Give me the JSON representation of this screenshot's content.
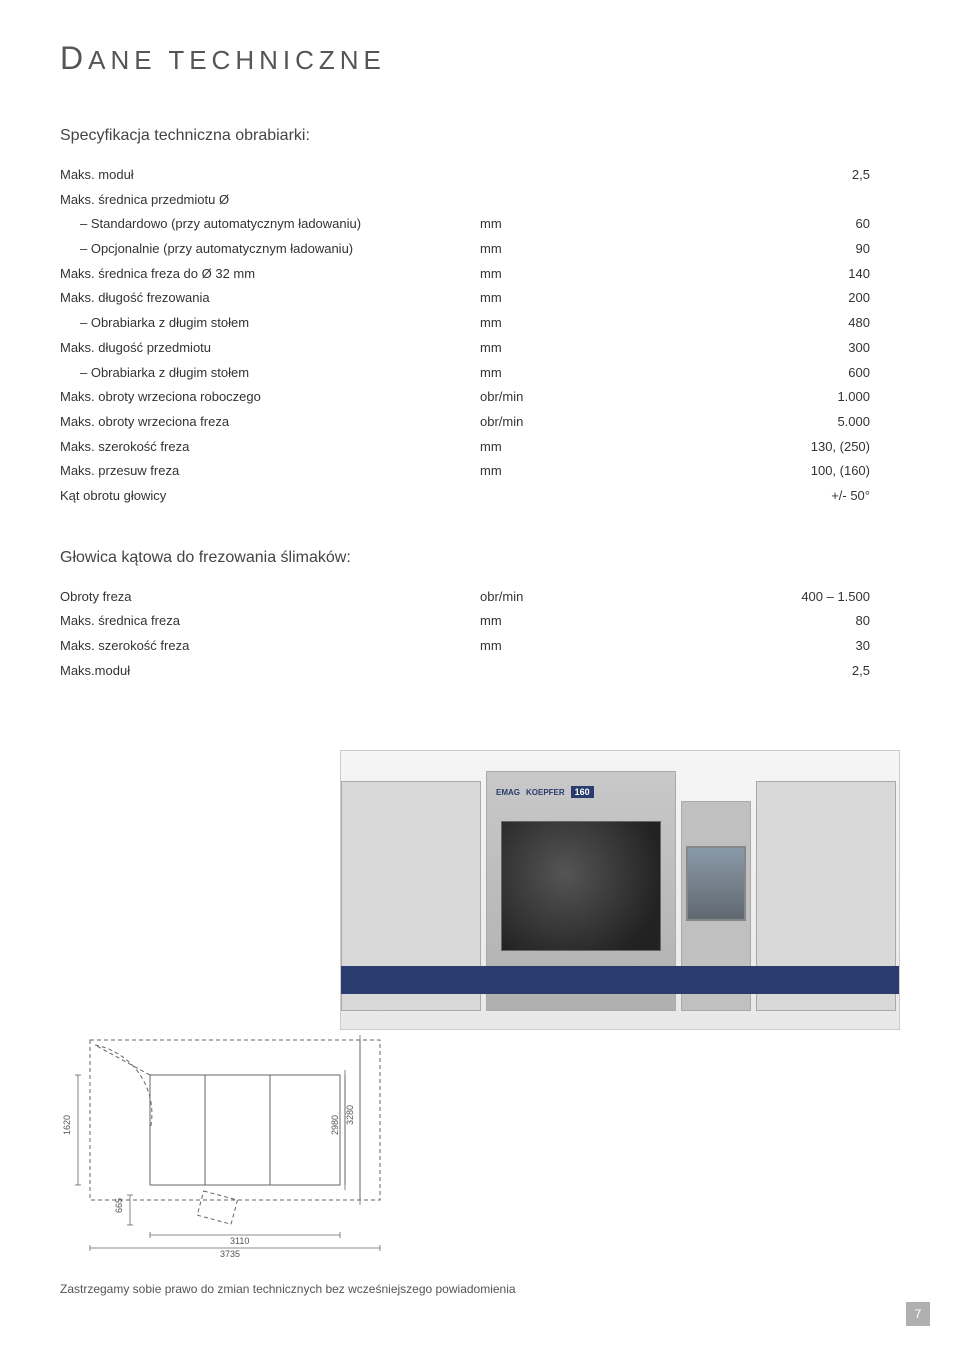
{
  "page": {
    "title_cap": "D",
    "title_rest": "ANE TECHNICZNE",
    "page_number": "7",
    "footer_note": "Zastrzegamy sobie prawo do zmian technicznych bez wcześniejszego powiadomienia"
  },
  "spec1": {
    "heading": "Specyfikacja techniczna obrabiarki:",
    "rows": [
      {
        "label": "Maks. moduł",
        "indent": false,
        "unit": "",
        "value": "2,5"
      },
      {
        "label": "Maks. średnica przedmiotu Ø",
        "indent": false,
        "unit": "",
        "value": ""
      },
      {
        "label": "– Standardowo (przy automatycznym ładowaniu)",
        "indent": true,
        "unit": "mm",
        "value": "60"
      },
      {
        "label": "– Opcjonalnie (przy automatycznym ładowaniu)",
        "indent": true,
        "unit": "mm",
        "value": "90"
      },
      {
        "label": "Maks. średnica freza   do Ø 32 mm",
        "indent": false,
        "unit": "mm",
        "value": "140"
      },
      {
        "label": "Maks. długość frezowania",
        "indent": false,
        "unit": "mm",
        "value": "200"
      },
      {
        "label": "– Obrabiarka z długim stołem",
        "indent": true,
        "unit": "mm",
        "value": "480"
      },
      {
        "label": "Maks. długość przedmiotu",
        "indent": false,
        "unit": "mm",
        "value": "300"
      },
      {
        "label": "– Obrabiarka z długim stołem",
        "indent": true,
        "unit": "mm",
        "value": "600"
      },
      {
        "label": "Maks. obroty wrzeciona roboczego",
        "indent": false,
        "unit": "obr/min",
        "value": "1.000"
      },
      {
        "label": "Maks. obroty wrzeciona freza",
        "indent": false,
        "unit": "obr/min",
        "value": "5.000"
      },
      {
        "label": "Maks. szerokość freza",
        "indent": false,
        "unit": "mm",
        "value": "130, (250)"
      },
      {
        "label": "Maks. przesuw freza",
        "indent": false,
        "unit": "mm",
        "value": "100, (160)"
      },
      {
        "label": "Kąt obrotu głowicy",
        "indent": false,
        "unit": "",
        "value": "+/- 50°"
      }
    ]
  },
  "spec2": {
    "heading": "Głowica kątowa do frezowania ślimaków:",
    "rows": [
      {
        "label": "Obroty freza",
        "indent": false,
        "unit": "obr/min",
        "value": "400 – 1.500"
      },
      {
        "label": "Maks. średnica freza",
        "indent": false,
        "unit": "mm",
        "value": "80"
      },
      {
        "label": "Maks. szerokość freza",
        "indent": false,
        "unit": "mm",
        "value": "30"
      },
      {
        "label": "Maks.moduł",
        "indent": false,
        "unit": "",
        "value": "2,5"
      }
    ]
  },
  "machine_photo": {
    "brand_left": "EMAG",
    "brand_right": "KOEPFER",
    "model": "160",
    "accent_color": "#2a3b6f",
    "panel_color": "#d8d8d8"
  },
  "diagram": {
    "stroke": "#666666",
    "dash": "4,3",
    "dims": {
      "h_left": "1620",
      "h_gap": "665",
      "w_bottom_inner": "3110",
      "w_bottom_outer": "3735",
      "d_inner": "2980",
      "d_outer": "3280"
    }
  }
}
